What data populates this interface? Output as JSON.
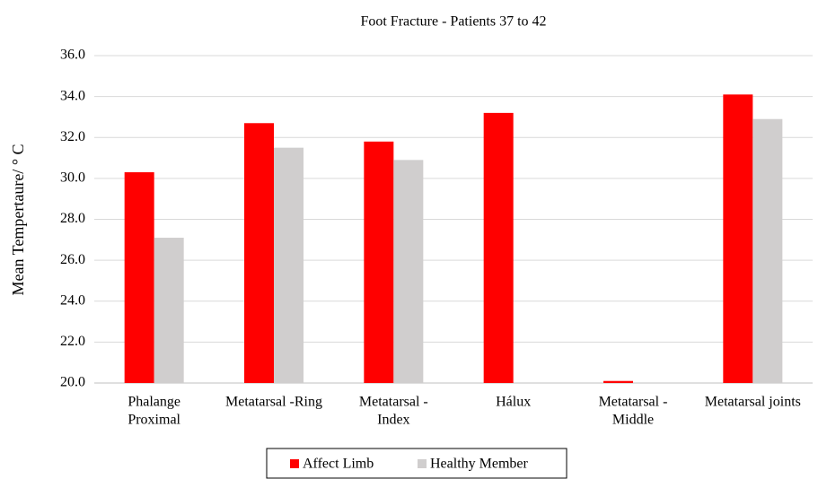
{
  "chart_data": {
    "type": "bar",
    "title": "Foot Fracture - Patients 37 to 42",
    "y_label": "Mean Tempertaure/ ° C",
    "categories": [
      [
        "Phalange",
        "Proximal"
      ],
      [
        "Metatarsal -Ring"
      ],
      [
        "Metatarsal -",
        "Index"
      ],
      [
        "Hálux"
      ],
      [
        "Metatarsal -",
        "Middle"
      ],
      [
        "Metatarsal joints"
      ]
    ],
    "series": [
      {
        "name": "Affect Limb",
        "color": "#ff0000",
        "values": [
          30.3,
          32.7,
          31.8,
          33.2,
          20.1,
          34.1
        ]
      },
      {
        "name": "Healthy Member",
        "color": "#d0cece",
        "values": [
          27.1,
          31.5,
          30.9,
          null,
          null,
          32.9
        ]
      }
    ],
    "ylim": [
      20,
      36
    ],
    "yticks": [
      {
        "value": 20,
        "label": "20.0"
      },
      {
        "value": 22,
        "label": "22.0"
      },
      {
        "value": 24,
        "label": "24.0"
      },
      {
        "value": 26,
        "label": "26.0"
      },
      {
        "value": 28,
        "label": "28.0"
      },
      {
        "value": 30,
        "label": "30.0"
      },
      {
        "value": 32,
        "label": "32.0"
      },
      {
        "value": 34,
        "label": "34.0"
      },
      {
        "value": 36,
        "label": "36.0"
      }
    ],
    "grid": true,
    "legend": "bottom"
  }
}
